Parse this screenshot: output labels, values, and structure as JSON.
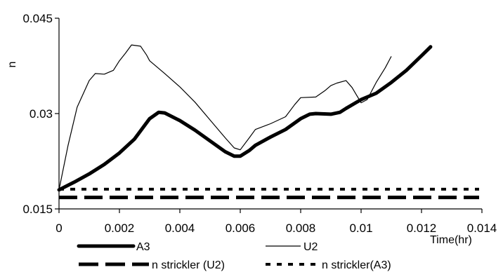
{
  "chart_data": {
    "type": "line",
    "title": "",
    "xlabel": "Time(hr)",
    "ylabel": "n",
    "xlim": [
      0,
      0.014
    ],
    "ylim": [
      0.015,
      0.045
    ],
    "x_ticks": [
      "0",
      "0.002",
      "0.004",
      "0.006",
      "0.008",
      "0.01",
      "0.012",
      "0.014"
    ],
    "y_ticks": [
      "0.015",
      "0.03",
      "0.045"
    ],
    "grid": false,
    "legend_position": "bottom",
    "series": [
      {
        "name": "A3",
        "style": "thick-solid",
        "color": "#000000",
        "x": [
          0,
          0.0005,
          0.001,
          0.0015,
          0.002,
          0.0025,
          0.003,
          0.0033,
          0.0035,
          0.004,
          0.0045,
          0.005,
          0.0055,
          0.0058,
          0.006,
          0.0063,
          0.0065,
          0.007,
          0.0075,
          0.008,
          0.0083,
          0.0085,
          0.009,
          0.0093,
          0.0095,
          0.01,
          0.0105,
          0.011,
          0.0115,
          0.012,
          0.0123
        ],
        "y": [
          0.018,
          0.0192,
          0.0205,
          0.022,
          0.0238,
          0.026,
          0.0292,
          0.0302,
          0.0301,
          0.0289,
          0.0274,
          0.0257,
          0.024,
          0.0233,
          0.0233,
          0.0242,
          0.025,
          0.0263,
          0.0275,
          0.0292,
          0.0299,
          0.03,
          0.0299,
          0.0302,
          0.0308,
          0.0322,
          0.0332,
          0.0349,
          0.0368,
          0.0391,
          0.0405
        ]
      },
      {
        "name": "U2",
        "style": "thin-solid",
        "color": "#000000",
        "x": [
          0,
          0.0003,
          0.0006,
          0.001,
          0.0012,
          0.0015,
          0.0018,
          0.002,
          0.0022,
          0.0024,
          0.0027,
          0.0029,
          0.003,
          0.0035,
          0.004,
          0.0045,
          0.005,
          0.0055,
          0.0058,
          0.006,
          0.0063,
          0.0065,
          0.007,
          0.0075,
          0.0078,
          0.008,
          0.0085,
          0.0088,
          0.009,
          0.0092,
          0.0095,
          0.0097,
          0.01,
          0.0102,
          0.0105,
          0.0108,
          0.011
        ],
        "y": [
          0.018,
          0.025,
          0.031,
          0.0352,
          0.0363,
          0.0362,
          0.0368,
          0.0383,
          0.0395,
          0.0408,
          0.0406,
          0.0392,
          0.0383,
          0.0363,
          0.0342,
          0.0318,
          0.029,
          0.0262,
          0.0246,
          0.0243,
          0.0262,
          0.0275,
          0.0284,
          0.0295,
          0.0314,
          0.0325,
          0.0326,
          0.0336,
          0.0344,
          0.0348,
          0.0352,
          0.0341,
          0.0317,
          0.0322,
          0.0349,
          0.0372,
          0.039
        ]
      },
      {
        "name": "n strickler (U2)",
        "style": "thick-dashed",
        "color": "#000000",
        "x": [
          0,
          0.014
        ],
        "y": [
          0.0168,
          0.0168
        ]
      },
      {
        "name": "n strickler(A3)",
        "style": "dotted",
        "color": "#000000",
        "x": [
          0,
          0.014
        ],
        "y": [
          0.0181,
          0.0181
        ]
      }
    ]
  }
}
